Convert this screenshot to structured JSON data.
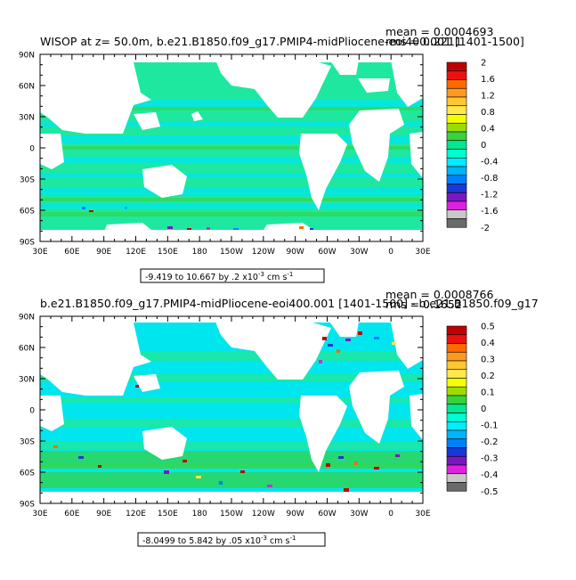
{
  "panels": [
    {
      "title": "WISOP at z=  50.0m, b.e21.B1850.f09_g17.PMIP4-midPliocene-eoi400.001 [1401-1500]",
      "mean": "mean = 0.0004693",
      "rms": "rms = 0.2211",
      "range": {
        "pre": "-9.419 to 10.667 by .2 x10",
        "exp": "-3",
        "unit": " cm s",
        "uexp": "-1"
      },
      "lat_labels": [
        "90N",
        "60N",
        "30N",
        "0",
        "30S",
        "60S",
        "90S"
      ],
      "lon_labels": [
        "30E",
        "60E",
        "90E",
        "120E",
        "150E",
        "180",
        "150W",
        "120W",
        "90W",
        "60W",
        "30W",
        "0",
        "30E"
      ],
      "colorbar": {
        "labels": [
          "2",
          "1.6",
          "1.2",
          "0.8",
          "0.4",
          "0",
          "-0.4",
          "-0.8",
          "-1.2",
          "-1.6",
          "-2"
        ],
        "colors": [
          "#c00000",
          "#ee1010",
          "#ff6a00",
          "#ff9a20",
          "#ffc830",
          "#ffe84a",
          "#f5ff00",
          "#9cdd00",
          "#38d23c",
          "#00e890",
          "#00ffd0",
          "#00ecff",
          "#00b4ff",
          "#0080ff",
          "#1838d8",
          "#7a18c0",
          "#e020e0",
          "#c8c8c8",
          "#6a6a6a"
        ]
      }
    },
    {
      "title": "b.e21.B1850.f09_g17.PMIP4-midPliocene-eoi400.001 [1401-1500] - b.e21.B1850.f09_g17",
      "mean": "mean = 0.0008766",
      "rms": "rms = 0.1652",
      "range": {
        "pre": "-8.0499 to 5.842 by .05 x10",
        "exp": "-3",
        "unit": " cm s",
        "uexp": "-1"
      },
      "lat_labels": [
        "90N",
        "60N",
        "30N",
        "0",
        "30S",
        "60S",
        "90S"
      ],
      "lon_labels": [
        "30E",
        "60E",
        "90E",
        "120E",
        "150E",
        "180",
        "150W",
        "120W",
        "90W",
        "60W",
        "30W",
        "0",
        "30E"
      ],
      "colorbar": {
        "labels": [
          "0.5",
          "0.4",
          "0.3",
          "0.2",
          "0.1",
          "0",
          "-0.1",
          "-0.2",
          "-0.3",
          "-0.4",
          "-0.5"
        ],
        "colors": [
          "#c00000",
          "#ee1010",
          "#ff6a00",
          "#ff9a20",
          "#ffc830",
          "#ffe84a",
          "#f5ff00",
          "#9cdd00",
          "#38d23c",
          "#00e890",
          "#00ffd0",
          "#00ecff",
          "#00b4ff",
          "#0080ff",
          "#1838d8",
          "#7a18c0",
          "#e020e0",
          "#c8c8c8",
          "#6a6a6a"
        ]
      }
    }
  ]
}
